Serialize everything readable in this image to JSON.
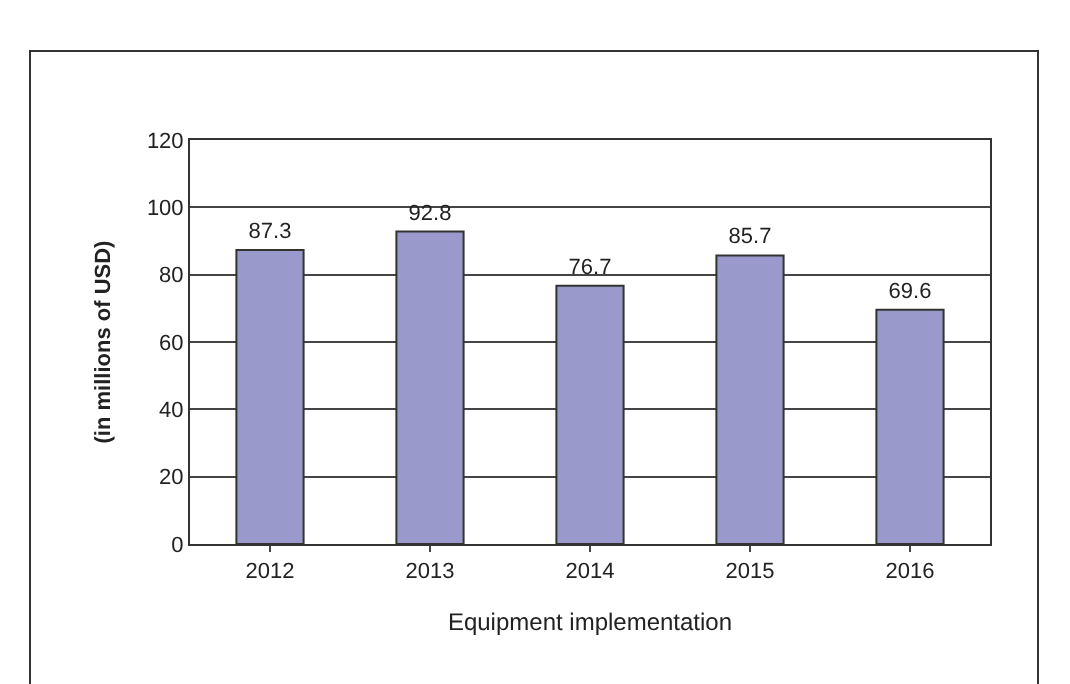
{
  "chart_data": {
    "type": "bar",
    "xlabel": "Equipment implementation",
    "ylabel": "(in millions of USD)",
    "categories": [
      "2012",
      "2013",
      "2014",
      "2015",
      "2016"
    ],
    "values": [
      87.3,
      92.8,
      76.7,
      85.7,
      69.6
    ],
    "color": "#9999cc",
    "ylim": [
      0,
      120
    ],
    "yticks": [
      0,
      20,
      40,
      60,
      80,
      100,
      120
    ],
    "grid": "y",
    "data_labels": true
  }
}
